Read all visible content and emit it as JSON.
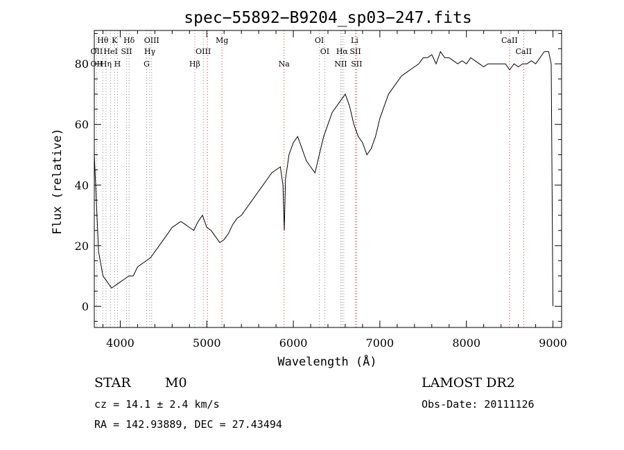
{
  "chart_data": {
    "type": "line",
    "title": "spec−55892−B9204_sp03−247.fits",
    "xlabel": "Wavelength (Å)",
    "ylabel": "Flux (relative)",
    "xlim": [
      3700,
      9100
    ],
    "ylim": [
      -7,
      91
    ],
    "xticks": [
      4000,
      5000,
      6000,
      7000,
      8000,
      9000
    ],
    "yticks": [
      0,
      20,
      40,
      60,
      80
    ],
    "grid": false,
    "series": [
      {
        "x": [
          3700,
          3750,
          3800,
          3850,
          3900,
          3950,
          4000,
          4050,
          4100,
          4150,
          4200,
          4250,
          4300,
          4350,
          4400,
          4450,
          4500,
          4550,
          4600,
          4650,
          4700,
          4750,
          4800,
          4850,
          4900,
          4950,
          5000,
          5050,
          5100,
          5150,
          5200,
          5250,
          5300,
          5350,
          5400,
          5450,
          5500,
          5550,
          5600,
          5650,
          5700,
          5750,
          5800,
          5850,
          5880,
          5895,
          5910,
          5950,
          6000,
          6050,
          6100,
          6150,
          6200,
          6250,
          6300,
          6350,
          6400,
          6450,
          6500,
          6550,
          6600,
          6650,
          6700,
          6750,
          6800,
          6850,
          6900,
          6950,
          7000,
          7050,
          7100,
          7150,
          7200,
          7250,
          7300,
          7350,
          7400,
          7450,
          7500,
          7550,
          7600,
          7650,
          7700,
          7750,
          7800,
          7850,
          7900,
          7950,
          8000,
          8050,
          8100,
          8150,
          8200,
          8250,
          8300,
          8350,
          8400,
          8450,
          8500,
          8550,
          8600,
          8650,
          8700,
          8750,
          8800,
          8850,
          8900,
          8950,
          8980,
          9000
        ],
        "y": [
          50,
          18,
          10,
          8,
          6,
          7,
          8,
          9,
          10,
          10,
          13,
          14,
          15,
          16,
          18,
          20,
          22,
          24,
          26,
          27,
          28,
          27,
          26,
          25,
          28,
          30,
          26,
          25,
          23,
          21,
          22,
          24,
          27,
          29,
          30,
          32,
          34,
          36,
          38,
          40,
          42,
          44,
          45,
          46,
          40,
          25,
          42,
          50,
          54,
          56,
          52,
          48,
          46,
          44,
          50,
          56,
          60,
          64,
          66,
          68,
          70,
          66,
          60,
          56,
          54,
          50,
          52,
          56,
          62,
          66,
          70,
          72,
          74,
          76,
          77,
          78,
          79,
          80,
          82,
          82,
          83,
          80,
          84,
          82,
          82,
          81,
          80,
          81,
          80,
          82,
          81,
          80,
          79,
          80,
          80,
          80,
          80,
          80,
          78,
          80,
          79,
          80,
          80,
          81,
          80,
          82,
          84,
          84,
          80,
          0
        ]
      }
    ],
    "annotations": {
      "line_labels": [
        {
          "text": "Hθ",
          "x": 3798,
          "row": 0
        },
        {
          "text": "K",
          "x": 3934,
          "row": 0
        },
        {
          "text": "Hδ",
          "x": 4102,
          "row": 0
        },
        {
          "text": "OIII",
          "x": 4363,
          "row": 0
        },
        {
          "text": "Mg",
          "x": 5175,
          "row": 0
        },
        {
          "text": "OI",
          "x": 6300,
          "row": 0
        },
        {
          "text": "Li",
          "x": 6708,
          "row": 0
        },
        {
          "text": "CaII",
          "x": 8498,
          "row": 0
        },
        {
          "text": "OII",
          "x": 3727,
          "row": 1
        },
        {
          "text": "HeI",
          "x": 3889,
          "row": 1
        },
        {
          "text": "SII",
          "x": 4072,
          "row": 1
        },
        {
          "text": "Hγ",
          "x": 4341,
          "row": 1
        },
        {
          "text": "OIII",
          "x": 4959,
          "row": 1
        },
        {
          "text": "OI",
          "x": 6363,
          "row": 1
        },
        {
          "text": "Hα",
          "x": 6563,
          "row": 1
        },
        {
          "text": "SII",
          "x": 6717,
          "row": 1
        },
        {
          "text": "CaII",
          "x": 8662,
          "row": 1
        },
        {
          "text": "OII",
          "x": 3727,
          "row": 2
        },
        {
          "text": "Hη",
          "x": 3835,
          "row": 2
        },
        {
          "text": "H",
          "x": 3968,
          "row": 2
        },
        {
          "text": "G",
          "x": 4305,
          "row": 2
        },
        {
          "text": "Hβ",
          "x": 4861,
          "row": 2
        },
        {
          "text": "Na",
          "x": 5893,
          "row": 2
        },
        {
          "text": "NII",
          "x": 6548,
          "row": 2
        },
        {
          "text": "SII",
          "x": 6731,
          "row": 2
        }
      ],
      "marker_lines_gray": [
        3727,
        3798,
        3835,
        3889,
        3934,
        3968,
        4072,
        4102,
        4305,
        4341,
        4363,
        4861,
        4959,
        6300,
        6363,
        6548,
        6563,
        6583
      ],
      "marker_lines_red": [
        5007,
        5175,
        5893,
        6717,
        6731,
        8498,
        8662
      ]
    }
  },
  "info": {
    "class_label": "STAR",
    "subclass_label": "M0",
    "release": "LAMOST DR2",
    "redshift_text": "cz = 14.1 ± 2.4 km/s",
    "obs_date": "Obs-Date: 20111126",
    "coords": "RA = 142.93889, DEC =  27.43494"
  }
}
